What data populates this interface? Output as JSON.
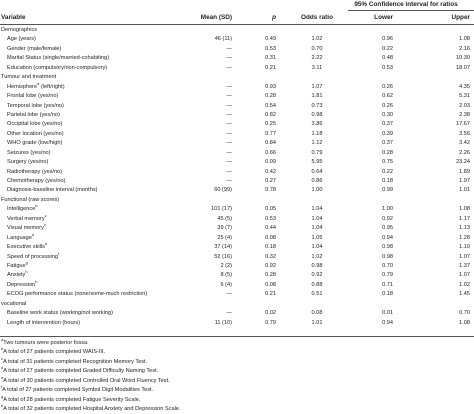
{
  "ci_header": "95% Confidence interval for ratios",
  "columns": {
    "variable": "Variable",
    "mean": "Mean (SD)",
    "p": "p",
    "odds_ratio": "Odds ratio",
    "lower": "Lower",
    "upper": "Upper"
  },
  "rows": [
    {
      "type": "section",
      "label": "Demographics",
      "mean": "",
      "p": "",
      "or": "",
      "lower": "",
      "upper": ""
    },
    {
      "type": "item",
      "label": "Age (years)",
      "mean": "46 (11)",
      "p": "0.49",
      "or": "1.02",
      "lower": "0.96",
      "upper": "1.08"
    },
    {
      "type": "item",
      "label": "Gender (male/female)",
      "mean": "—",
      "p": "0.53",
      "or": "0.70",
      "lower": "0.22",
      "upper": "2.16"
    },
    {
      "type": "item",
      "label": "Marital Status (single/married-cohabiting)",
      "mean": "—",
      "p": "0.31",
      "or": "2.22",
      "lower": "0.48",
      "upper": "10.30"
    },
    {
      "type": "item",
      "label": "Education (compulsory/non-compulsory)",
      "mean": "—",
      "p": "0.21",
      "or": "3.11",
      "lower": "0.53",
      "upper": "18.07"
    },
    {
      "type": "section",
      "label": "Tumour and treatment",
      "mean": "",
      "p": "",
      "or": "",
      "lower": "",
      "upper": ""
    },
    {
      "type": "item",
      "label": "Hemisphere",
      "sup": "a",
      "label_tail": " (left/right)",
      "mean": "—",
      "p": "0.93",
      "or": "1.07",
      "lower": "0.26",
      "upper": "4.35"
    },
    {
      "type": "item",
      "label": "Frontal lobe (yes/no)",
      "mean": "—",
      "p": "0.28",
      "or": "1.81",
      "lower": "0.62",
      "upper": "5.31"
    },
    {
      "type": "item",
      "label": "Temporal lobe (yes/no)",
      "mean": "—",
      "p": "0.54",
      "or": "0.73",
      "lower": "0.26",
      "upper": "2.03"
    },
    {
      "type": "item",
      "label": "Parietal lobe (yes/no)",
      "mean": "—",
      "p": "0.82",
      "or": "0.98",
      "lower": "0.30",
      "upper": "2.38"
    },
    {
      "type": "item",
      "label": "Occipital lobe (yes/no)",
      "mean": "—",
      "p": "0.25",
      "or": "3.86",
      "lower": "0.37",
      "upper": "17.67"
    },
    {
      "type": "item",
      "label": "Other location (yes/no)",
      "mean": "—",
      "p": "0.77",
      "or": "1.18",
      "lower": "0.39",
      "upper": "3.56"
    },
    {
      "type": "item",
      "label": "WHO grade (low/high)",
      "mean": "—",
      "p": "0.84",
      "or": "1.12",
      "lower": "0.37",
      "upper": "3.42"
    },
    {
      "type": "item",
      "label": "Seizures (yes/no)",
      "mean": "—",
      "p": "0.66",
      "or": "0.79",
      "lower": "0.28",
      "upper": "2.26"
    },
    {
      "type": "item",
      "label": "Surgery (yes/no)",
      "mean": "—",
      "p": "0.09",
      "or": "5.95",
      "lower": "0.75",
      "upper": "23.24"
    },
    {
      "type": "item",
      "label": "Radiotherapy (yes/no)",
      "mean": "—",
      "p": "0.42",
      "or": "0.64",
      "lower": "0.22",
      "upper": "1.89"
    },
    {
      "type": "item",
      "label": "Chemotherapy (yes/no)",
      "mean": "—",
      "p": "0.27",
      "or": "0.86",
      "lower": "0.18",
      "upper": "1.97"
    },
    {
      "type": "item",
      "label": "Diagnosis-baseline interval (months)",
      "mean": "60 (99)",
      "p": "0.78",
      "or": "1.00",
      "lower": "0.99",
      "upper": "1.01"
    },
    {
      "type": "section",
      "label": "Functional (raw scores)",
      "mean": "",
      "p": "",
      "or": "",
      "lower": "",
      "upper": ""
    },
    {
      "type": "item",
      "label": "Intelligence",
      "sup": "b",
      "label_tail": "",
      "mean": "101 (17)",
      "p": "0.05",
      "or": "1.04",
      "lower": "1.00",
      "upper": "1.08"
    },
    {
      "type": "item",
      "label": "Verbal memory",
      "sup": "c",
      "label_tail": "",
      "mean": "45 (5)",
      "p": "0.53",
      "or": "1.04",
      "lower": "0.92",
      "upper": "1.17"
    },
    {
      "type": "item",
      "label": "Visual memory",
      "sup": "c",
      "label_tail": "",
      "mean": "39 (7)",
      "p": "0.44",
      "or": "1.04",
      "lower": "0.95",
      "upper": "1.13"
    },
    {
      "type": "item",
      "label": "Language",
      "sup": "d",
      "label_tail": "",
      "mean": "25 (4)",
      "p": "0.08",
      "or": "1.05",
      "lower": "0.94",
      "upper": "1.28"
    },
    {
      "type": "item",
      "label": "Executive skills",
      "sup": "e",
      "label_tail": "",
      "mean": "37 (14)",
      "p": "0.18",
      "or": "1.04",
      "lower": "0.98",
      "upper": "1.10"
    },
    {
      "type": "item",
      "label": "Speed of processing",
      "sup": "f",
      "label_tail": "",
      "mean": "52 (16)",
      "p": "0.32",
      "or": "1.02",
      "lower": "0.98",
      "upper": "1.07"
    },
    {
      "type": "item",
      "label": "Fatigue",
      "sup": "g",
      "label_tail": "",
      "mean": "2 (2)",
      "p": "0.92",
      "or": "0.98",
      "lower": "0.70",
      "upper": "1.37"
    },
    {
      "type": "item",
      "label": "Anxiety",
      "sup": "h",
      "label_tail": "",
      "mean": "8 (5)",
      "p": "0.28",
      "or": "0.92",
      "lower": "0.79",
      "upper": "1.07"
    },
    {
      "type": "item",
      "label": "Depression",
      "sup": "h",
      "label_tail": "",
      "mean": "6 (4)",
      "p": "0.08",
      "or": "0.88",
      "lower": "0.71",
      "upper": "1.02"
    },
    {
      "type": "item",
      "label": "ECOG performance status (none/some-much restriction)",
      "mean": "—",
      "p": "0.21",
      "or": "0.51",
      "lower": "0.18",
      "upper": "1.45"
    },
    {
      "type": "section",
      "label": "vocational",
      "mean": "",
      "p": "",
      "or": "",
      "lower": "",
      "upper": ""
    },
    {
      "type": "item",
      "label": "Baseline work status (working/not working)",
      "mean": "—",
      "p": "0.02",
      "or": "0.08",
      "lower": "0.01",
      "upper": "0.70"
    },
    {
      "type": "item",
      "label": "Length of intervention (hours)",
      "mean": "11 (10)",
      "p": "0.79",
      "or": "1.01",
      "lower": "0.94",
      "upper": "1.08"
    }
  ],
  "notes": [
    {
      "sup": "a",
      "text": "Two tumours were posterior fossa."
    },
    {
      "sup": "b",
      "text": "A total of 27 patients completed WAIS-III."
    },
    {
      "sup": "c",
      "text": "A total of 31 patients completed Recognition Memory Test."
    },
    {
      "sup": "d",
      "text": "A total of 27 patients completed Graded Difficulty Naming Test."
    },
    {
      "sup": "e",
      "text": "A total of 30 patients completed Controlled Oral Word Fluency Test."
    },
    {
      "sup": "f",
      "text": "A total of 27 patients completed Symbol Digit Modalities Test."
    },
    {
      "sup": "g",
      "text": "A total of 28 patients completed Fatigue Severity Scale."
    },
    {
      "sup": "h",
      "text": "A total of 32 patients completed Hospital Anxiety and Depression Scale."
    }
  ]
}
